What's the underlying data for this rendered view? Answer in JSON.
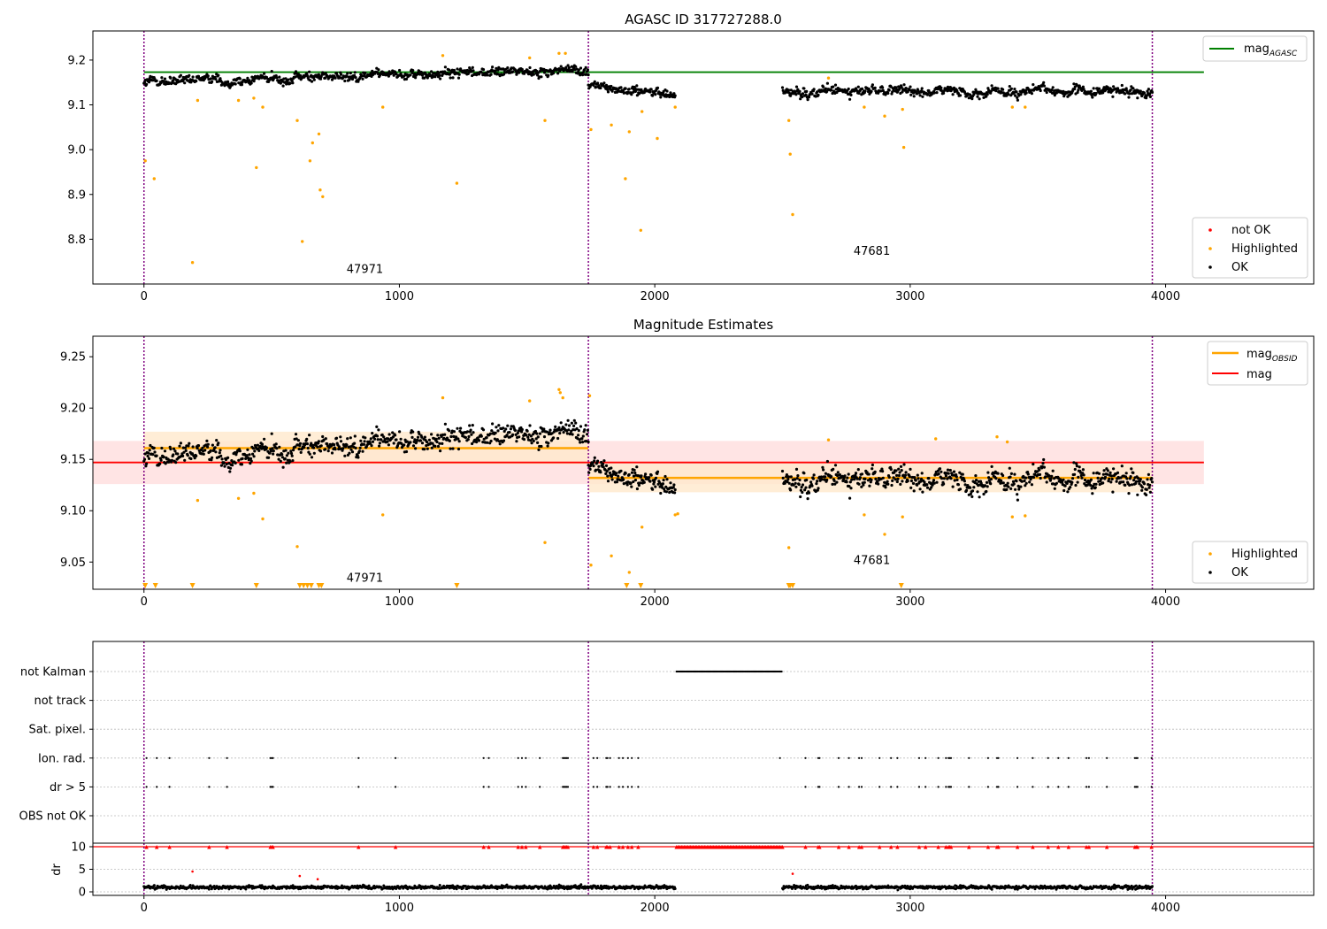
{
  "chart_data": [
    {
      "type": "scatter",
      "title": "AGASC ID 317727288.0",
      "xlim": [
        -200,
        4580
      ],
      "ylim": [
        8.7,
        9.265
      ],
      "xticks": [
        0,
        1000,
        2000,
        3000,
        4000
      ],
      "yticks": [
        8.8,
        8.9,
        9.0,
        9.1,
        9.2
      ],
      "ytick_labels": [
        "8.8",
        "8.9",
        "9.0",
        "9.1",
        "9.2"
      ],
      "obsid_boundaries": [
        0,
        1740,
        3948
      ],
      "obsid_labels": [
        {
          "text": "47971",
          "x": 865,
          "y": 8.725
        },
        {
          "text": "47681",
          "x": 2850,
          "y": 8.765
        }
      ],
      "legend_upper": {
        "position": "upper right",
        "entries": [
          {
            "label": "mag",
            "sub": "AGASC",
            "color": "#008000"
          }
        ]
      },
      "legend_lower": {
        "position": "lower right",
        "entries": [
          {
            "label": "not OK",
            "color": "#ff0000"
          },
          {
            "label": "Highlighted",
            "color": "#ffa500"
          },
          {
            "label": "OK",
            "color": "#000000"
          }
        ]
      },
      "lines": [
        {
          "name": "mag_AGASC",
          "x": [
            0,
            4150
          ],
          "y": [
            9.173,
            9.173
          ],
          "color": "#008000"
        }
      ],
      "series": [
        {
          "name": "OK",
          "color": "#000000",
          "segments": [
            {
              "x0": 0,
              "x1": 1740,
              "y0": 9.15,
              "y1": 9.18,
              "noise": 0.011,
              "n": 700
            },
            {
              "x0": 1740,
              "x1": 2080,
              "y0": 9.14,
              "y1": 9.125,
              "noise": 0.009,
              "n": 150
            },
            {
              "x0": 2500,
              "x1": 3948,
              "y0": 9.13,
              "y1": 9.13,
              "noise": 0.011,
              "n": 600
            }
          ]
        },
        {
          "name": "Highlighted",
          "color": "#ffa500",
          "x": [
            5,
            40,
            190,
            210,
            370,
            430,
            440,
            465,
            600,
            620,
            650,
            660,
            685,
            690,
            700,
            935,
            1225,
            1170,
            1510,
            1570,
            1625,
            1650,
            1750,
            1830,
            1885,
            1900,
            1945,
            1950,
            2010,
            2080,
            2525,
            2530,
            2540,
            2680,
            2820,
            2900,
            2970,
            2975,
            3400,
            3450
          ],
          "y": [
            8.975,
            8.935,
            8.748,
            9.11,
            9.11,
            9.115,
            8.96,
            9.095,
            9.065,
            8.795,
            8.975,
            9.015,
            9.035,
            8.91,
            8.895,
            9.095,
            8.925,
            9.21,
            9.205,
            9.065,
            9.215,
            9.215,
            9.045,
            9.055,
            8.935,
            9.04,
            8.82,
            9.085,
            9.025,
            9.095,
            9.065,
            8.99,
            8.855,
            9.16,
            9.095,
            9.075,
            9.09,
            9.005,
            9.095,
            9.095
          ]
        }
      ]
    },
    {
      "type": "scatter",
      "title": "Magnitude Estimates",
      "xlim": [
        -200,
        4580
      ],
      "ylim": [
        9.0235,
        9.27
      ],
      "xticks": [
        0,
        1000,
        2000,
        3000,
        4000
      ],
      "yticks": [
        9.05,
        9.1,
        9.15,
        9.2,
        9.25
      ],
      "ytick_labels": [
        "9.05",
        "9.10",
        "9.15",
        "9.20",
        "9.25"
      ],
      "obsid_boundaries": [
        0,
        1740,
        3948
      ],
      "obsid_labels": [
        {
          "text": "47971",
          "x": 865,
          "y": 9.031
        },
        {
          "text": "47681",
          "x": 2850,
          "y": 9.048
        }
      ],
      "legend_upper": {
        "position": "upper right",
        "entries": [
          {
            "label": "mag",
            "sub": "OBSID",
            "color": "#ffa500"
          },
          {
            "label": "mag",
            "sub": "",
            "color": "#ff0000"
          }
        ]
      },
      "legend_lower": {
        "position": "lower right",
        "entries": [
          {
            "label": "Highlighted",
            "color": "#ffa500"
          },
          {
            "label": "OK",
            "color": "#000000"
          }
        ]
      },
      "bands": [
        {
          "x0": -200,
          "x1": 4150,
          "y0": 9.126,
          "y1": 9.168,
          "color": "#ffdddd"
        },
        {
          "x0": 0,
          "x1": 1740,
          "y0": 9.145,
          "y1": 9.177,
          "color": "#ffe8cc"
        },
        {
          "x0": 1740,
          "x1": 3948,
          "y0": 9.118,
          "y1": 9.146,
          "color": "#ffe8cc"
        }
      ],
      "lines": [
        {
          "name": "mag",
          "x": [
            -200,
            4150
          ],
          "y": [
            9.147,
            9.147
          ],
          "color": "#ff0000"
        },
        {
          "name": "mag_OBSID 47971",
          "x": [
            0,
            1740
          ],
          "y": [
            9.161,
            9.161
          ],
          "color": "#ffa500"
        },
        {
          "name": "mag_OBSID 47681",
          "x": [
            1740,
            3948
          ],
          "y": [
            9.132,
            9.132
          ],
          "color": "#ffa500"
        }
      ],
      "series": [
        {
          "name": "OK",
          "color": "#000000",
          "segments": [
            {
              "x0": 0,
              "x1": 1740,
              "y0": 9.15,
              "y1": 9.18,
              "noise": 0.011,
              "n": 700
            },
            {
              "x0": 1740,
              "x1": 2080,
              "y0": 9.14,
              "y1": 9.125,
              "noise": 0.009,
              "n": 150
            },
            {
              "x0": 2500,
              "x1": 3948,
              "y0": 9.13,
              "y1": 9.13,
              "noise": 0.011,
              "n": 600
            }
          ]
        },
        {
          "name": "Highlighted",
          "color": "#ffa500",
          "x": [
            210,
            370,
            430,
            465,
            600,
            935,
            1170,
            1510,
            1570,
            1625,
            1630,
            1640,
            1745,
            1750,
            1830,
            1900,
            1950,
            2080,
            2090,
            2525,
            2680,
            2820,
            2900,
            2970,
            3100,
            3340,
            3380,
            3400,
            3450
          ],
          "y": [
            9.11,
            9.112,
            9.117,
            9.092,
            9.065,
            9.096,
            9.21,
            9.207,
            9.069,
            9.218,
            9.215,
            9.21,
            9.212,
            9.047,
            9.056,
            9.04,
            9.084,
            9.096,
            9.097,
            9.064,
            9.169,
            9.096,
            9.077,
            9.094,
            9.17,
            9.172,
            9.167,
            9.094,
            9.095
          ]
        },
        {
          "name": "Highlighted (below range)",
          "color": "#ffa500",
          "marker": "triangle-down",
          "x": [
            5,
            45,
            190,
            440,
            610,
            625,
            640,
            655,
            685,
            695,
            1225,
            1890,
            1945,
            2525,
            2530,
            2540,
            2965
          ],
          "y": [
            9.027,
            9.027,
            9.027,
            9.027,
            9.027,
            9.027,
            9.027,
            9.027,
            9.027,
            9.027,
            9.027,
            9.027,
            9.027,
            9.027,
            9.027,
            9.027,
            9.027
          ]
        }
      ]
    },
    {
      "type": "scatter",
      "title": "",
      "xlim": [
        -200,
        4580
      ],
      "xticks": [
        0,
        1000,
        2000,
        3000,
        4000
      ],
      "obsid_boundaries": [
        0,
        1740,
        3948
      ],
      "flag_rows": [
        "not Kalman",
        "not track",
        "Sat. pixel.",
        "Ion. rad.",
        "dr > 5",
        "OBS not OK"
      ],
      "flags": {
        "not Kalman": {
          "ranges": [
            [
              2085,
              2500
            ]
          ],
          "points": []
        },
        "not track": {
          "ranges": [],
          "points": []
        },
        "Sat. pixel.": {
          "ranges": [],
          "points": []
        },
        "Ion. rad.": {
          "ranges": [],
          "points": [
            10,
            50,
            100,
            255,
            325,
            495,
            500,
            505,
            840,
            985,
            1330,
            1350,
            1465,
            1480,
            1495,
            1550,
            1640,
            1645,
            1650,
            1655,
            1660,
            1760,
            1775,
            1810,
            1815,
            1825,
            1860,
            1875,
            1895,
            1910,
            1935,
            2490,
            2590,
            2640,
            2645,
            2720,
            2760,
            2800,
            2810,
            2880,
            2925,
            2950,
            3035,
            3060,
            3110,
            3140,
            3150,
            3155,
            3160,
            3230,
            3305,
            3340,
            3345,
            3420,
            3480,
            3540,
            3580,
            3620,
            3690,
            3700,
            3770,
            3880,
            3885,
            3890,
            3945
          ]
        },
        "dr > 5": {
          "ranges": [],
          "points": [
            10,
            50,
            100,
            255,
            325,
            495,
            500,
            505,
            840,
            985,
            1330,
            1350,
            1465,
            1480,
            1495,
            1550,
            1640,
            1645,
            1650,
            1655,
            1660,
            1760,
            1775,
            1810,
            1815,
            1825,
            1860,
            1875,
            1895,
            1910,
            1935,
            2590,
            2640,
            2645,
            2720,
            2760,
            2800,
            2810,
            2880,
            2925,
            2950,
            3035,
            3060,
            3110,
            3140,
            3150,
            3155,
            3160,
            3230,
            3305,
            3340,
            3345,
            3420,
            3480,
            3540,
            3580,
            3620,
            3690,
            3700,
            3770,
            3880,
            3885,
            3890,
            3945
          ]
        },
        "OBS not OK": {
          "ranges": [],
          "points": []
        }
      },
      "dr": {
        "ylabel": "dr",
        "ylim": [
          0,
          10
        ],
        "yticks": [
          0,
          5,
          10
        ],
        "ok_segments": [
          [
            0,
            2080
          ],
          [
            2500,
            3948
          ]
        ],
        "ok_mean": 1.0,
        "ok_spread": 0.8,
        "ok_n": 1400,
        "red_clipped_x": [
          10,
          50,
          100,
          255,
          325,
          495,
          500,
          505,
          840,
          985,
          1330,
          1350,
          1465,
          1480,
          1495,
          1550,
          1640,
          1645,
          1650,
          1655,
          1660,
          1760,
          1775,
          1810,
          1815,
          1825,
          1860,
          1875,
          1895,
          1910,
          1935,
          2590,
          2640,
          2645,
          2720,
          2760,
          2800,
          2810,
          2880,
          2925,
          2950,
          3035,
          3060,
          3110,
          3140,
          3150,
          3155,
          3160,
          3230,
          3305,
          3340,
          3345,
          3420,
          3480,
          3540,
          3580,
          3620,
          3690,
          3700,
          3770,
          3880,
          3885,
          3890,
          3945
        ],
        "red_clipped_range": [
          2085,
          2500
        ],
        "red_points": [
          [
            190,
            4.5
          ],
          [
            610,
            3.5
          ],
          [
            680,
            2.8
          ],
          [
            2540,
            4.0
          ]
        ]
      }
    }
  ]
}
